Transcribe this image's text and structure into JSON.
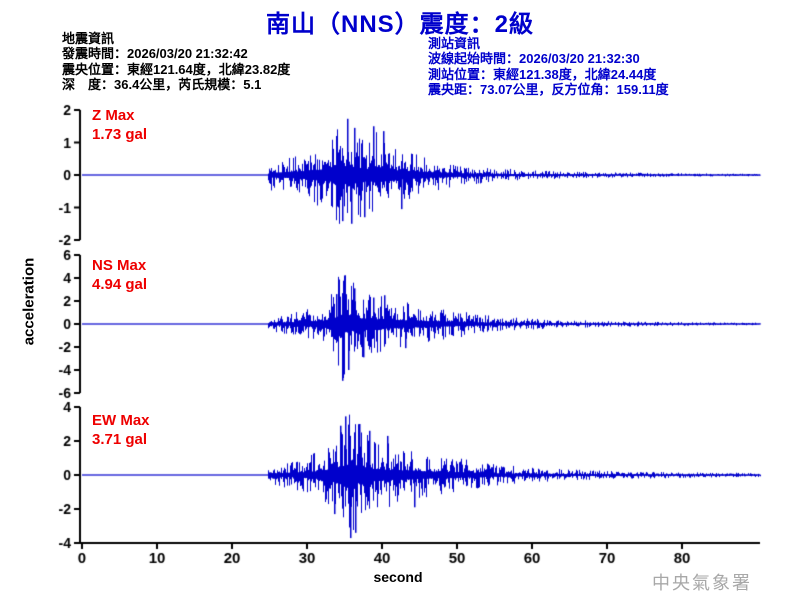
{
  "title": {
    "text": "南山（NNS）震度：2級"
  },
  "earthquake_info": {
    "lines": [
      "地震資訊",
      "發震時間：2026/03/20 21:32:42",
      "震央位置：東經121.64度，北緯23.82度",
      "深　度：36.4公里，芮氏規模：5.1"
    ]
  },
  "station_info": {
    "lines": [
      "測站資訊",
      "波線起始時間：2026/03/20 21:32:30",
      "測站位置：東經121.38度，北緯24.44度",
      "震央距：73.07公里，反方位角：159.11度"
    ]
  },
  "axis": {
    "xlabel": "second",
    "ylabel": "acceleration"
  },
  "watermark": "中央氣象署",
  "colors": {
    "title_blue": "#0000cc",
    "info_blue": "#0000cc",
    "trace_blue": "#0000cc",
    "max_red": "#ee0000",
    "axis_black": "#000000",
    "watermark_gray": "#a8a8a8"
  },
  "chart_data": {
    "type": "line",
    "title": "南山（NNS）震度：2級",
    "xlabel": "second",
    "ylabel": "acceleration",
    "unit": "gal",
    "x_ticks": [
      0,
      10,
      20,
      30,
      40,
      50,
      60,
      70,
      80
    ],
    "x_range": [
      0,
      90.4
    ],
    "signal_onset_s": 24.7,
    "grid": false,
    "legend": "none",
    "series": [
      {
        "name": "Z",
        "max_label": "Z Max",
        "max_text": "1.73 gal",
        "max_gal": 1.73,
        "peak_time_s": 35.3,
        "ylim": [
          -2,
          2
        ],
        "y_ticks": [
          2,
          1,
          0,
          -1,
          -2
        ],
        "envelope": [
          [
            24.7,
            0
          ],
          [
            24.9,
            0.3
          ],
          [
            26,
            0.28
          ],
          [
            28,
            0.34
          ],
          [
            30,
            0.45
          ],
          [
            32,
            0.6
          ],
          [
            33.5,
            0.78
          ],
          [
            35,
            1
          ],
          [
            36.5,
            0.85
          ],
          [
            38,
            0.68
          ],
          [
            39.5,
            0.82
          ],
          [
            41,
            0.58
          ],
          [
            43,
            0.46
          ],
          [
            45,
            0.36
          ],
          [
            47,
            0.29
          ],
          [
            49,
            0.23
          ],
          [
            52,
            0.17
          ],
          [
            55,
            0.13
          ],
          [
            58,
            0.1
          ],
          [
            62,
            0.08
          ],
          [
            66,
            0.06
          ],
          [
            72,
            0.045
          ],
          [
            78,
            0.035
          ],
          [
            84,
            0.027
          ],
          [
            90.4,
            0.022
          ]
        ],
        "spikes": [
          [
            33.8,
            1.2
          ],
          [
            34.7,
            -1.42
          ],
          [
            35.3,
            1.73
          ],
          [
            35.9,
            -1.5
          ],
          [
            36.3,
            1.45
          ],
          [
            37.6,
            -1.3
          ],
          [
            38.8,
            1.5
          ],
          [
            40.1,
            1.35
          ],
          [
            42.5,
            -1.05
          ]
        ]
      },
      {
        "name": "NS",
        "max_label": "NS Max",
        "max_text": "4.94 gal",
        "max_gal": 4.94,
        "peak_time_s": 34.6,
        "ylim": [
          -6,
          6
        ],
        "y_ticks": [
          6,
          4,
          2,
          0,
          -2,
          -4,
          -6
        ],
        "envelope": [
          [
            24.7,
            0
          ],
          [
            24.9,
            0.16
          ],
          [
            26,
            0.16
          ],
          [
            28,
            0.2
          ],
          [
            30,
            0.26
          ],
          [
            32,
            0.36
          ],
          [
            33.5,
            0.62
          ],
          [
            34.6,
            1
          ],
          [
            35.8,
            0.78
          ],
          [
            37,
            0.62
          ],
          [
            38.5,
            0.55
          ],
          [
            40,
            0.5
          ],
          [
            42,
            0.44
          ],
          [
            44,
            0.37
          ],
          [
            46,
            0.32
          ],
          [
            48,
            0.28
          ],
          [
            50,
            0.24
          ],
          [
            53,
            0.18
          ],
          [
            56,
            0.13
          ],
          [
            60,
            0.1
          ],
          [
            65,
            0.07
          ],
          [
            70,
            0.055
          ],
          [
            76,
            0.04
          ],
          [
            82,
            0.03
          ],
          [
            90.4,
            0.024
          ]
        ],
        "spikes": [
          [
            33.9,
            2.6
          ],
          [
            34.6,
            -4.94
          ],
          [
            34.9,
            3.45
          ],
          [
            35.5,
            -4
          ],
          [
            36.2,
            3.1
          ],
          [
            37.4,
            -2.9
          ],
          [
            38.8,
            2.3
          ],
          [
            40.2,
            2.5
          ],
          [
            43,
            -2.1
          ]
        ]
      },
      {
        "name": "EW",
        "max_label": "EW Max",
        "max_text": "3.71 gal",
        "max_gal": 3.71,
        "peak_time_s": 35.7,
        "ylim": [
          -4,
          4
        ],
        "y_ticks": [
          4,
          2,
          0,
          -2,
          -4
        ],
        "envelope": [
          [
            24.7,
            0
          ],
          [
            24.9,
            0.17
          ],
          [
            26,
            0.18
          ],
          [
            28,
            0.22
          ],
          [
            30,
            0.3
          ],
          [
            32,
            0.42
          ],
          [
            33.5,
            0.65
          ],
          [
            35.3,
            1
          ],
          [
            36.8,
            0.82
          ],
          [
            38,
            0.65
          ],
          [
            40,
            0.55
          ],
          [
            42,
            0.46
          ],
          [
            44,
            0.4
          ],
          [
            46,
            0.36
          ],
          [
            48,
            0.31
          ],
          [
            50,
            0.27
          ],
          [
            53,
            0.21
          ],
          [
            56,
            0.16
          ],
          [
            60,
            0.12
          ],
          [
            65,
            0.09
          ],
          [
            70,
            0.07
          ],
          [
            76,
            0.055
          ],
          [
            82,
            0.042
          ],
          [
            90.4,
            0.032
          ]
        ],
        "spikes": [
          [
            33.6,
            -2.3
          ],
          [
            34.4,
            2.9
          ],
          [
            35.1,
            3.45
          ],
          [
            35.7,
            -3.71
          ],
          [
            36.4,
            -3.4
          ],
          [
            36.9,
            3
          ],
          [
            38.3,
            2.6
          ],
          [
            40.6,
            2.3
          ],
          [
            44.2,
            -1.9
          ]
        ]
      }
    ]
  }
}
